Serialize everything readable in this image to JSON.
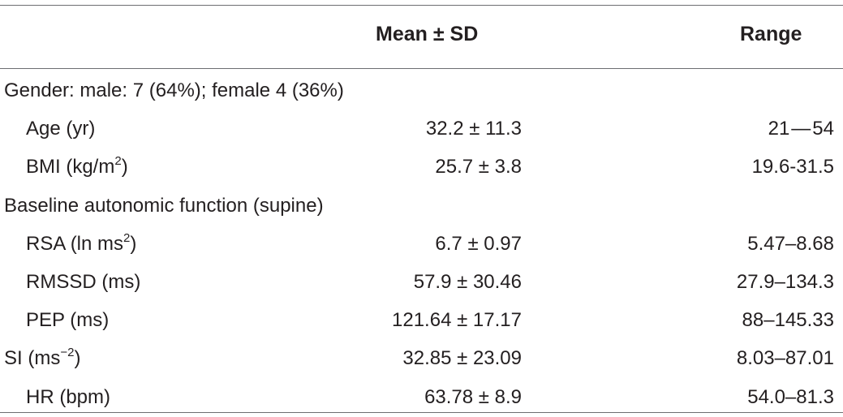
{
  "table": {
    "headers": {
      "mean": "Mean ± SD",
      "range": "Range"
    },
    "rows": [
      {
        "label": "Gender: male: 7 (64%); female 4 (36%)",
        "sup": "",
        "after": "",
        "mean": "",
        "range": "",
        "indent": false
      },
      {
        "label": "Age (yr)",
        "sup": "",
        "after": "",
        "mean": "32.2 ± 11.3",
        "range": "21 — 54",
        "indent": true
      },
      {
        "label": "BMI (kg/m",
        "sup": "2",
        "after": ")",
        "mean": "25.7 ± 3.8",
        "range": "19.6-31.5",
        "indent": true
      },
      {
        "label": "Baseline autonomic function (supine)",
        "sup": "",
        "after": "",
        "mean": "",
        "range": "",
        "indent": false
      },
      {
        "label": "RSA (ln ms",
        "sup": "2",
        "after": ")",
        "mean": "6.7 ± 0.97",
        "range": "5.47–8.68",
        "indent": true
      },
      {
        "label": "RMSSD (ms)",
        "sup": "",
        "after": "",
        "mean": "57.9 ± 30.46",
        "range": "27.9–134.3",
        "indent": true
      },
      {
        "label": "PEP (ms)",
        "sup": "",
        "after": "",
        "mean": "121.64 ± 17.17",
        "range": "88–145.33",
        "indent": true
      },
      {
        "label": "SI (ms",
        "sup": "−2",
        "after": ")",
        "mean": "32.85 ± 23.09",
        "range": "8.03–87.01",
        "indent": false
      },
      {
        "label": "HR (bpm)",
        "sup": "",
        "after": "",
        "mean": "63.78 ± 8.9",
        "range": "54.0–81.3",
        "indent": true
      }
    ]
  }
}
